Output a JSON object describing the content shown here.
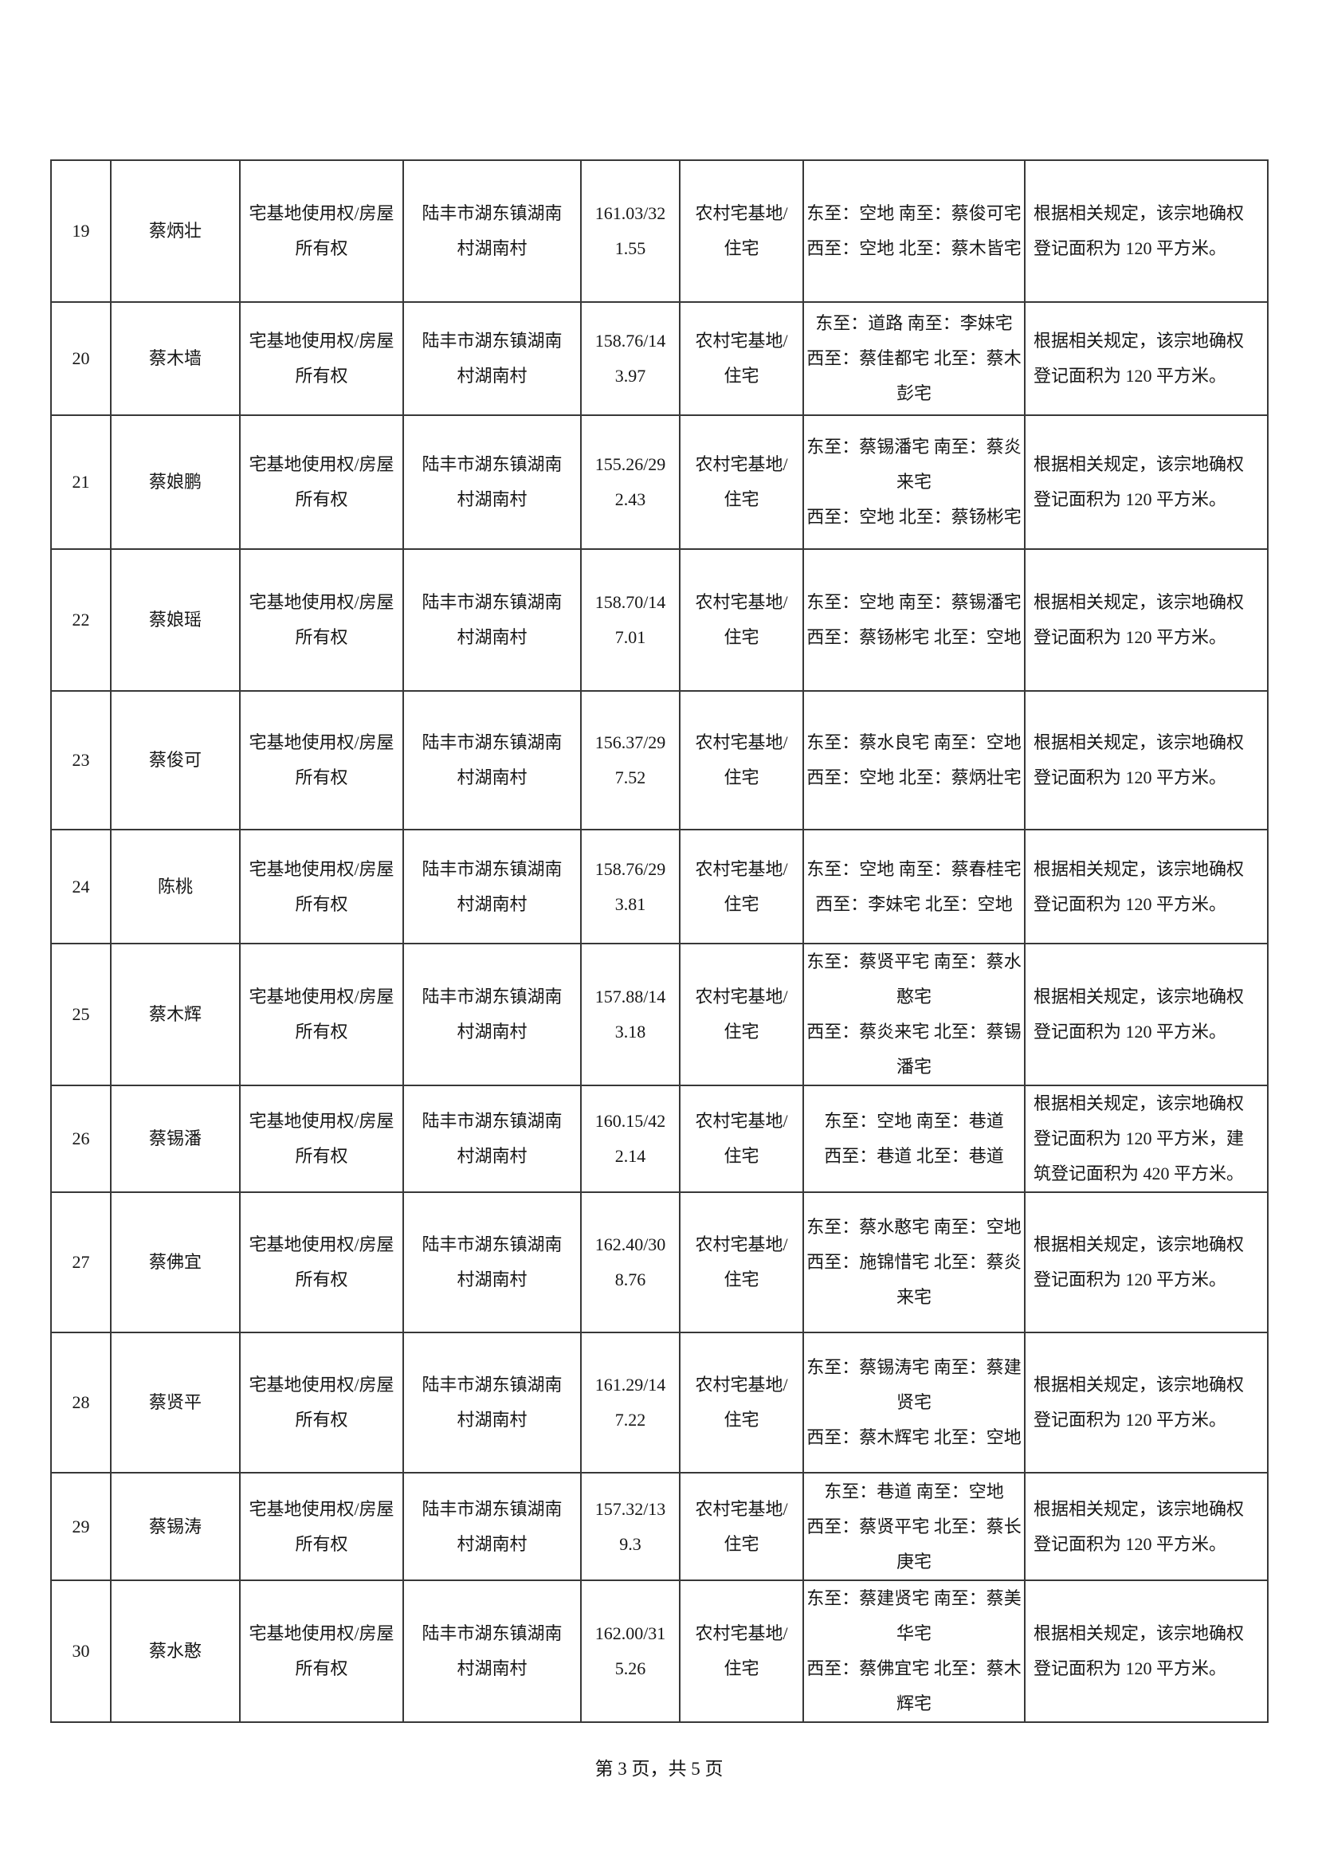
{
  "document": {
    "footer_text": "第 3 页，共 5 页"
  },
  "table": {
    "rows": [
      {
        "seq": "19",
        "owner": "蔡炳壮",
        "rights": "宅基地使用权/房屋所有权",
        "location": "陆丰市湖东镇湖南村湖南村",
        "area": "161.03/321.55",
        "usage": "农村宅基地/住宅",
        "boundary_east_south": "东至：空地 南至：蔡俊可宅",
        "boundary_west_north": "西至：空地 北至：蔡木皆宅",
        "remark": "根据相关规定，该宗地确权登记面积为 120 平方米。"
      },
      {
        "seq": "20",
        "owner": "蔡木墙",
        "rights": "宅基地使用权/房屋所有权",
        "location": "陆丰市湖东镇湖南村湖南村",
        "area": "158.76/143.97",
        "usage": "农村宅基地/住宅",
        "boundary_east_south": "东至：道路 南至：李妹宅",
        "boundary_west_north": "西至：蔡佳都宅 北至：蔡木彭宅",
        "remark": "根据相关规定，该宗地确权登记面积为 120 平方米。"
      },
      {
        "seq": "21",
        "owner": "蔡娘鹏",
        "rights": "宅基地使用权/房屋所有权",
        "location": "陆丰市湖东镇湖南村湖南村",
        "area": "155.26/292.43",
        "usage": "农村宅基地/住宅",
        "boundary_east_south": "东至：蔡锡潘宅 南至：蔡炎来宅",
        "boundary_west_north": "西至：空地 北至：蔡钖彬宅",
        "remark": "根据相关规定，该宗地确权登记面积为 120 平方米。"
      },
      {
        "seq": "22",
        "owner": "蔡娘瑶",
        "rights": "宅基地使用权/房屋所有权",
        "location": "陆丰市湖东镇湖南村湖南村",
        "area": "158.70/147.01",
        "usage": "农村宅基地/住宅",
        "boundary_east_south": "东至：空地 南至：蔡锡潘宅",
        "boundary_west_north": "西至：蔡钖彬宅 北至：空地",
        "remark": "根据相关规定，该宗地确权登记面积为 120 平方米。"
      },
      {
        "seq": "23",
        "owner": "蔡俊可",
        "rights": "宅基地使用权/房屋所有权",
        "location": "陆丰市湖东镇湖南村湖南村",
        "area": "156.37/297.52",
        "usage": "农村宅基地/住宅",
        "boundary_east_south": "东至：蔡水良宅 南至：空地",
        "boundary_west_north": "西至：空地 北至：蔡炳壮宅",
        "remark": "根据相关规定，该宗地确权登记面积为 120 平方米。"
      },
      {
        "seq": "24",
        "owner": "陈桃",
        "rights": "宅基地使用权/房屋所有权",
        "location": "陆丰市湖东镇湖南村湖南村",
        "area": "158.76/293.81",
        "usage": "农村宅基地/住宅",
        "boundary_east_south": "东至：空地 南至：蔡春桂宅",
        "boundary_west_north": "西至：李妹宅 北至：空地",
        "remark": "根据相关规定，该宗地确权登记面积为 120 平方米。"
      },
      {
        "seq": "25",
        "owner": "蔡木辉",
        "rights": "宅基地使用权/房屋所有权",
        "location": "陆丰市湖东镇湖南村湖南村",
        "area": "157.88/143.18",
        "usage": "农村宅基地/住宅",
        "boundary_east_south": "东至：蔡贤平宅 南至：蔡水憨宅",
        "boundary_west_north": "西至：蔡炎来宅 北至：蔡锡潘宅",
        "remark": "根据相关规定，该宗地确权登记面积为 120 平方米。"
      },
      {
        "seq": "26",
        "owner": "蔡锡潘",
        "rights": "宅基地使用权/房屋所有权",
        "location": "陆丰市湖东镇湖南村湖南村",
        "area": "160.15/422.14",
        "usage": "农村宅基地/住宅",
        "boundary_east_south": "东至：空地 南至：巷道",
        "boundary_west_north": "西至：巷道 北至：巷道",
        "remark": "根据相关规定，该宗地确权登记面积为 120 平方米，建筑登记面积为 420 平方米。"
      },
      {
        "seq": "27",
        "owner": "蔡佛宜",
        "rights": "宅基地使用权/房屋所有权",
        "location": "陆丰市湖东镇湖南村湖南村",
        "area": "162.40/308.76",
        "usage": "农村宅基地/住宅",
        "boundary_east_south": "东至：蔡水憨宅 南至：空地",
        "boundary_west_north": "西至：施锦惜宅 北至：蔡炎来宅",
        "remark": "根据相关规定，该宗地确权登记面积为 120 平方米。"
      },
      {
        "seq": "28",
        "owner": "蔡贤平",
        "rights": "宅基地使用权/房屋所有权",
        "location": "陆丰市湖东镇湖南村湖南村",
        "area": "161.29/147.22",
        "usage": "农村宅基地/住宅",
        "boundary_east_south": "东至：蔡锡涛宅 南至：蔡建贤宅",
        "boundary_west_north": "西至：蔡木辉宅 北至：空地",
        "remark": "根据相关规定，该宗地确权登记面积为 120 平方米。"
      },
      {
        "seq": "29",
        "owner": "蔡锡涛",
        "rights": "宅基地使用权/房屋所有权",
        "location": "陆丰市湖东镇湖南村湖南村",
        "area": "157.32/139.3",
        "usage": "农村宅基地/住宅",
        "boundary_east_south": "东至：巷道 南至：空地",
        "boundary_west_north": "西至：蔡贤平宅 北至：蔡长庚宅",
        "remark": "根据相关规定，该宗地确权登记面积为 120 平方米。"
      },
      {
        "seq": "30",
        "owner": "蔡水憨",
        "rights": "宅基地使用权/房屋所有权",
        "location": "陆丰市湖东镇湖南村湖南村",
        "area": "162.00/315.26",
        "usage": "农村宅基地/住宅",
        "boundary_east_south": "东至：蔡建贤宅 南至：蔡美华宅",
        "boundary_west_north": "西至：蔡佛宜宅 北至：蔡木辉宅",
        "remark": "根据相关规定，该宗地确权登记面积为 120 平方米。"
      }
    ]
  }
}
